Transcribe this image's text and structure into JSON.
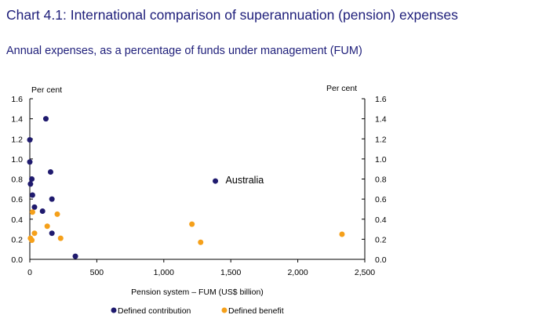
{
  "chart_data": {
    "type": "scatter",
    "title": "Chart 4.1: International comparison of superannuation (pension) expenses",
    "subtitle": "Annual expenses, as a percentage of funds under management (FUM)",
    "xlabel": "Pension system – FUM  (US$ billion)",
    "ylabel_left": "Per cent",
    "ylabel_right": "Per cent",
    "xlim": [
      0,
      2500
    ],
    "ylim": [
      0,
      1.6
    ],
    "x_ticks": [
      0,
      500,
      1000,
      1500,
      2000,
      2500
    ],
    "x_tick_labels": [
      "0",
      "500",
      "1,000",
      "1,500",
      "2,000",
      "2,500"
    ],
    "y_ticks": [
      0,
      0.2,
      0.4,
      0.6,
      0.8,
      1.0,
      1.2,
      1.4,
      1.6
    ],
    "y_tick_labels": [
      "0.0",
      "0.2",
      "0.4",
      "0.6",
      "0.8",
      "1.0",
      "1.2",
      "1.4",
      "1.6"
    ],
    "grid": false,
    "legend_position": "bottom",
    "series": [
      {
        "name": "Defined contribution",
        "color": "#1f1a6e",
        "points": [
          {
            "x": 0,
            "y": 1.19
          },
          {
            "x": 0,
            "y": 0.97
          },
          {
            "x": 5,
            "y": 0.75
          },
          {
            "x": 15,
            "y": 0.8
          },
          {
            "x": 20,
            "y": 0.64
          },
          {
            "x": 35,
            "y": 0.52
          },
          {
            "x": 95,
            "y": 0.48
          },
          {
            "x": 120,
            "y": 1.4
          },
          {
            "x": 155,
            "y": 0.87
          },
          {
            "x": 165,
            "y": 0.6
          },
          {
            "x": 165,
            "y": 0.26
          },
          {
            "x": 340,
            "y": 0.03
          },
          {
            "x": 1385,
            "y": 0.78
          }
        ]
      },
      {
        "name": "Defined benefit",
        "color": "#f5a01a",
        "points": [
          {
            "x": 5,
            "y": 0.21
          },
          {
            "x": 15,
            "y": 0.19
          },
          {
            "x": 20,
            "y": 0.47
          },
          {
            "x": 35,
            "y": 0.26
          },
          {
            "x": 130,
            "y": 0.33
          },
          {
            "x": 205,
            "y": 0.45
          },
          {
            "x": 230,
            "y": 0.21
          },
          {
            "x": 1210,
            "y": 0.35
          },
          {
            "x": 1275,
            "y": 0.17
          },
          {
            "x": 2330,
            "y": 0.25
          }
        ]
      }
    ],
    "annotations": [
      {
        "text": "Australia",
        "x": 1385,
        "y": 0.78
      }
    ]
  }
}
